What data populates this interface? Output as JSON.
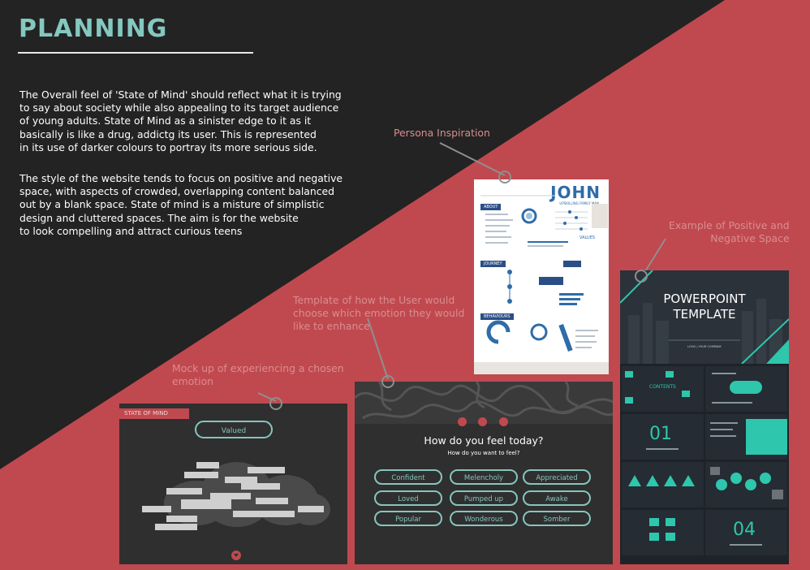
{
  "page": {
    "title": "PLANNING",
    "paragraph1": [
      "The Overall feel of 'State of Mind' should reflect what it is trying",
      "to say about society while also appealing to its target audience",
      "of young adults. State of Mind as a sinister edge to it as it",
      "basically is like a drug, addictg its user. This is represented",
      "in its use of darker colours to portray its more serious side."
    ],
    "paragraph2": [
      "The style of the website tends to focus on positive and negative",
      "space, with aspects of crowded, overlapping content balanced",
      "out by a blank space. State of mind is a misture of simplistic",
      "design and cluttered spaces. The aim is for the website",
      "to look compelling and attract curious teens"
    ]
  },
  "annotations": {
    "persona": "Persona Inspiration",
    "positive_negative": [
      "Example of Positive and",
      "Negative Space"
    ],
    "template": [
      "Template of how the User would",
      "choose which emotion they would",
      "like to enhance"
    ],
    "mockup": [
      "Mock up of experiencing a chosen",
      "emotion"
    ]
  },
  "persona": {
    "name": "JOHN",
    "subtitle": "UPSKILLING FAMILY MAN",
    "sections": [
      "ABOUT",
      "JOURNEY",
      "BEHAVIOURS"
    ],
    "values_label": "VALUES"
  },
  "mockup": {
    "brand": "STATE OF MIND",
    "selected": "Valued"
  },
  "emotion_template": {
    "question": "How do you feel today?",
    "subquestion": "How do you want to feel?",
    "options": [
      "Confident",
      "Melencholy",
      "Appreciated",
      "Loved",
      "Pumped up",
      "Awake",
      "Popular",
      "Wonderous",
      "Somber"
    ]
  },
  "ppt": {
    "title_line1": "POWERPOINT",
    "title_line2": "TEMPLATE",
    "subtitle": "LOGO  |  YOUR COMPANY",
    "contents_label": "CONTENTS",
    "num1": "01",
    "num4": "04"
  },
  "colors": {
    "dark": "#232323",
    "red": "#c0494f",
    "teal": "#84c8bf",
    "annotation": "#d98d90"
  }
}
